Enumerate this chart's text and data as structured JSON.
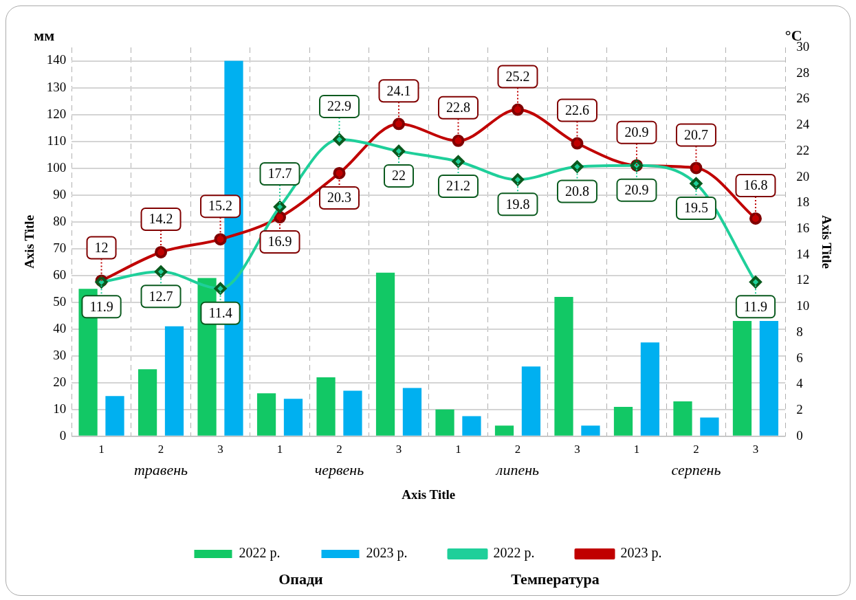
{
  "chart_data": {
    "type": "bar",
    "xlabel": "Axis Title",
    "ylabel": "Axis Title",
    "y2label": "Axis Title",
    "categories": [
      "1",
      "2",
      "3",
      "1",
      "2",
      "3",
      "1",
      "2",
      "3",
      "1",
      "2",
      "3"
    ],
    "series": [
      {
        "name": "2022 р.",
        "color": "#12c865",
        "values": [
          55,
          25,
          59,
          16,
          22,
          61,
          10,
          4,
          52,
          11,
          13,
          43
        ]
      },
      {
        "name": "2023 р.",
        "color": "#00b0f0",
        "values": [
          15,
          41,
          140,
          14,
          17,
          18,
          7.5,
          26,
          4,
          35,
          7,
          43
        ]
      },
      {
        "name": "2022 р.",
        "type": "line",
        "axis": "y2",
        "marker": "diamond",
        "color": "#1fcf9a",
        "values": [
          11.9,
          12.7,
          11.4,
          17.7,
          22.9,
          22,
          21.2,
          19.8,
          20.8,
          20.9,
          19.5,
          11.9
        ],
        "value_labels": [
          "11.9",
          "12.7",
          "11.4",
          "17.7",
          "22.9",
          "22",
          "21.2",
          "19.8",
          "20.8",
          "20.9",
          "19.5",
          "11.9"
        ]
      },
      {
        "name": "2023 р.",
        "type": "line",
        "axis": "y2",
        "marker": "circle",
        "color": "#c00000",
        "values": [
          12,
          14.2,
          15.2,
          16.9,
          20.3,
          24.1,
          22.8,
          25.2,
          22.6,
          20.9,
          20.7,
          16.8
        ],
        "value_labels": [
          "12",
          "14.2",
          "15.2",
          "16.9",
          "20.3",
          "24.1",
          "22.8",
          "25.2",
          "22.6",
          "20.9",
          "20.7",
          "16.8"
        ]
      }
    ],
    "ylim": [
      0,
      145
    ],
    "yticks": [
      0,
      10,
      20,
      30,
      40,
      50,
      60,
      70,
      80,
      90,
      100,
      110,
      120,
      130,
      140
    ],
    "y2lim": [
      0,
      30
    ],
    "y2ticks": [
      0,
      2,
      4,
      6,
      8,
      10,
      12,
      14,
      16,
      18,
      20,
      22,
      24,
      26,
      28,
      30
    ],
    "grid": true,
    "legend": "bottom",
    "annotations": [
      "травень",
      "червень",
      "липень",
      "серпень",
      "мм",
      "°C",
      "Опади",
      "Температура"
    ]
  }
}
